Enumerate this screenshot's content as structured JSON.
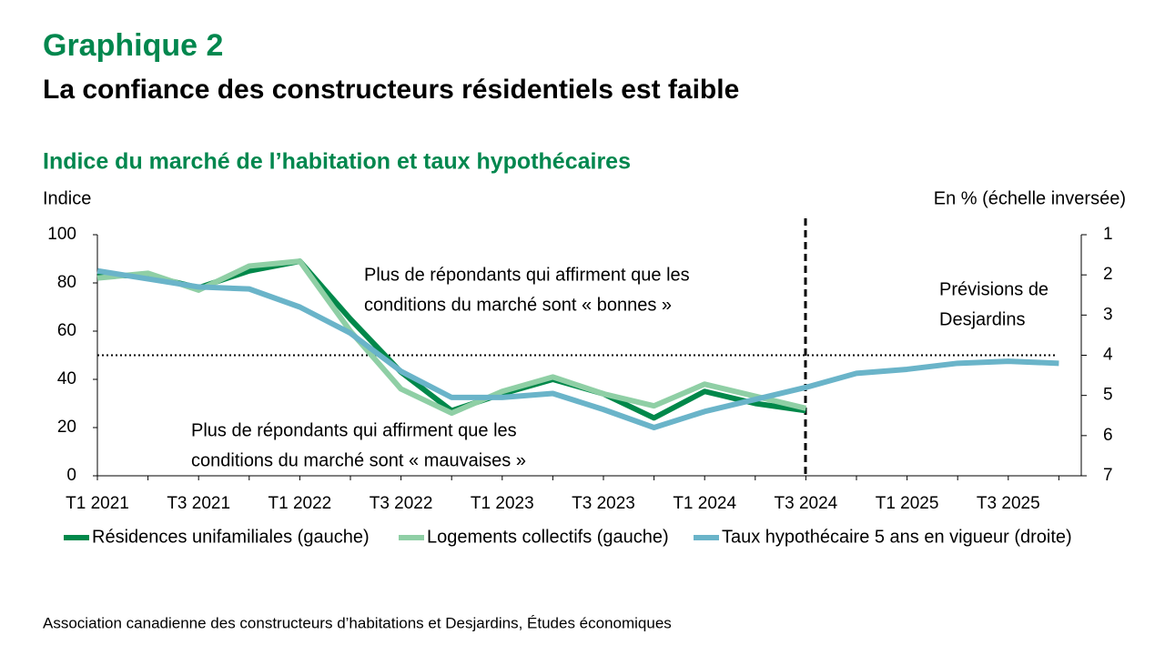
{
  "chart_data": {
    "type": "line",
    "heading": "Graphique 2",
    "title": "La confiance des constructeurs résidentiels est faible",
    "subtitle": "Indice du marché de l’habitation et taux hypothécaires",
    "y_label": "Indice",
    "y2_label": "En % (échelle inversée)",
    "categories": [
      "T1 2021",
      null,
      "T3 2021",
      null,
      "T1 2022",
      null,
      "T3 2022",
      null,
      "T1 2023",
      null,
      "T3 2023",
      null,
      "T1 2024",
      null,
      "T3 2024",
      null,
      "T1 2025",
      null,
      "T3 2025",
      null
    ],
    "series": [
      {
        "name": "Résidences unifamiliales (gauche)",
        "color": "#00884a",
        "values": [
          83,
          83,
          78,
          85,
          89,
          65,
          43,
          27,
          34,
          40,
          34,
          24,
          35,
          30,
          27,
          null,
          null,
          null,
          null,
          null
        ]
      },
      {
        "name": "Logements collectifs (gauche)",
        "color": "#8fcfa5",
        "values": [
          82,
          84,
          77,
          87,
          89,
          60,
          36,
          26,
          35,
          41,
          34,
          29,
          38,
          33,
          28,
          null,
          null,
          null,
          null,
          null
        ]
      },
      {
        "name": "Taux hypothécaire 5 ans en vigueur (droite)",
        "color": "#6ab4c9",
        "axis": "y2",
        "values": [
          1.9,
          2.1,
          2.3,
          2.35,
          2.8,
          3.45,
          4.4,
          5.05,
          5.05,
          4.95,
          5.35,
          5.8,
          5.4,
          5.1,
          4.8,
          4.45,
          4.35,
          4.2,
          4.15,
          4.2
        ]
      }
    ],
    "ylim": [
      0,
      100
    ],
    "yticks": [
      0,
      20,
      40,
      60,
      80,
      100
    ],
    "y2lim": [
      7,
      1
    ],
    "y2ticks": [
      1,
      2,
      3,
      4,
      5,
      6,
      7
    ],
    "threshold": 50,
    "annotations": [
      "Plus de répondants qui affirment que les",
      "conditions du marché sont « bonnes »",
      "Plus de répondants qui affirment que les",
      "conditions du marché sont « mauvaises »",
      "Prévisions de",
      "Desjardins"
    ],
    "source": "Association canadienne des constructeurs d’habitations et Desjardins, Études économiques"
  }
}
